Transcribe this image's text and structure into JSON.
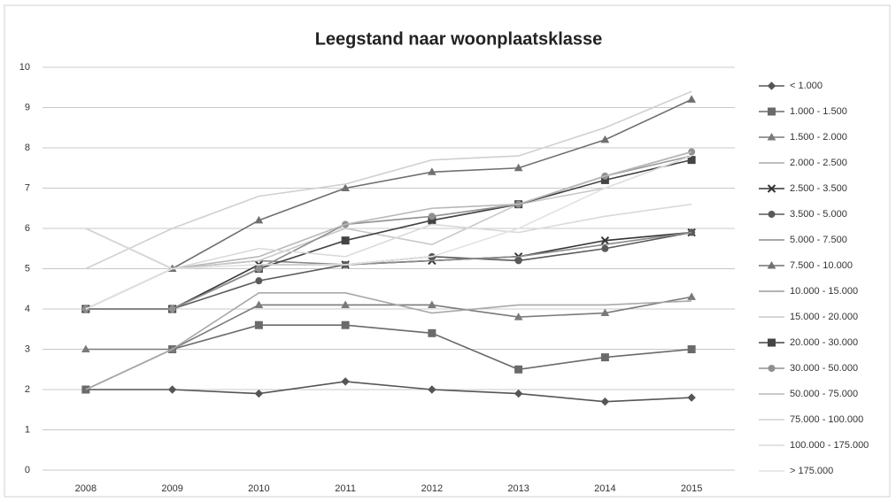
{
  "chart_data": {
    "type": "line",
    "title": "Leegstand  naar woonplaatsklasse",
    "categories": [
      "2008",
      "2009",
      "2010",
      "2011",
      "2012",
      "2013",
      "2014",
      "2015"
    ],
    "ylim": [
      0,
      10
    ],
    "yticks": [
      0,
      1,
      2,
      3,
      4,
      5,
      6,
      7,
      8,
      9,
      10
    ],
    "grid": true,
    "legend": "right",
    "series": [
      {
        "name": "< 1.000",
        "color": "#555555",
        "marker": "diamond",
        "values": [
          2,
          2,
          1.9,
          2.2,
          2,
          1.9,
          1.7,
          1.8
        ]
      },
      {
        "name": "1.000 - 1.500",
        "color": "#6a6a6a",
        "marker": "square",
        "values": [
          2,
          3,
          3.6,
          3.6,
          3.4,
          2.5,
          2.8,
          3
        ]
      },
      {
        "name": "1.500 - 2.000",
        "color": "#7a7a7a",
        "marker": "triangle",
        "values": [
          3,
          3,
          4.1,
          4.1,
          4.1,
          3.8,
          3.9,
          4.3
        ]
      },
      {
        "name": "2.000 - 2.500",
        "color": "#a8a8a8",
        "marker": "none",
        "values": [
          2,
          3,
          4.4,
          4.4,
          3.9,
          4.1,
          4.1,
          4.2
        ]
      },
      {
        "name": "2.500 - 3.500",
        "color": "#333333",
        "marker": "cross",
        "values": [
          4,
          4,
          5.1,
          5.1,
          5.2,
          5.3,
          5.7,
          5.9
        ]
      },
      {
        "name": "3.500 - 5.000",
        "color": "#5a5a5a",
        "marker": "circle",
        "values": [
          4,
          4,
          4.7,
          5.1,
          5.3,
          5.2,
          5.5,
          5.9
        ]
      },
      {
        "name": "5.000 - 7.500",
        "color": "#8a8a8a",
        "marker": "none",
        "values": [
          6,
          5,
          5.2,
          5.1,
          5.2,
          5.3,
          5.6,
          5.9
        ]
      },
      {
        "name": "7.500 - 10.000",
        "color": "#707070",
        "marker": "triangle",
        "values": [
          4,
          5,
          6.2,
          7,
          7.4,
          7.5,
          8.2,
          9.2
        ]
      },
      {
        "name": "10.000 - 15.000",
        "color": "#9a9a9a",
        "marker": "none",
        "values": [
          4,
          4,
          5,
          5.7,
          6.2,
          6.6,
          7.3,
          7.8
        ]
      },
      {
        "name": "15.000 - 20.000",
        "color": "#c8c8c8",
        "marker": "none",
        "values": [
          4,
          5,
          5.2,
          6,
          5.6,
          6.6,
          7,
          7.8
        ]
      },
      {
        "name": "20.000 - 30.000",
        "color": "#444444",
        "marker": "square",
        "values": [
          4,
          4,
          5,
          5.7,
          6.2,
          6.6,
          7.2,
          7.7
        ]
      },
      {
        "name": "30.000 - 50.000",
        "color": "#909090",
        "marker": "circle",
        "values": [
          4,
          4,
          5,
          6.1,
          6.3,
          6.6,
          7.3,
          7.9
        ]
      },
      {
        "name": "50.000 - 75.000",
        "color": "#b8b8b8",
        "marker": "none",
        "values": [
          4,
          5,
          5.3,
          6.1,
          6.5,
          6.6,
          7.3,
          7.9
        ]
      },
      {
        "name": "75.000 - 100.000",
        "color": "#d0d0d0",
        "marker": "none",
        "values": [
          5,
          6,
          6.8,
          7.1,
          7.7,
          7.8,
          8.5,
          9.4
        ]
      },
      {
        "name": "100.000 - 175.000",
        "color": "#dadada",
        "marker": "none",
        "values": [
          6,
          5,
          5.5,
          5.3,
          6.1,
          5.9,
          6.3,
          6.6
        ]
      },
      {
        "name": "> 175.000",
        "color": "#e2e2e2",
        "marker": "none",
        "values": [
          4,
          5,
          5.1,
          5.1,
          5.3,
          6,
          7,
          7.8
        ]
      }
    ]
  }
}
